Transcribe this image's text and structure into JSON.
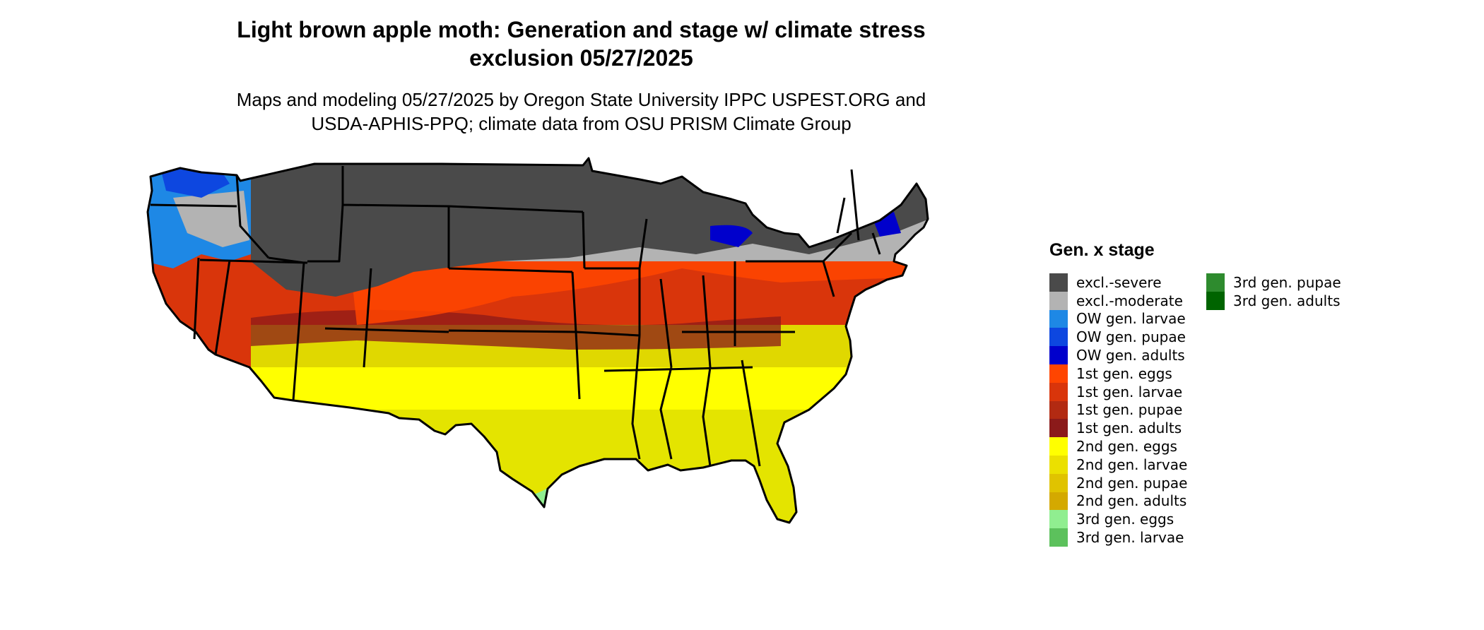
{
  "title_line1": "Light brown apple moth: Generation and stage w/ climate stress",
  "title_line2": "exclusion 05/27/2025",
  "subtitle_line1": "Maps and modeling 05/27/2025 by Oregon State University IPPC USPEST.ORG and",
  "subtitle_line2": "USDA-APHIS-PPQ; climate data from OSU PRISM Climate Group",
  "legend": {
    "title": "Gen. x stage",
    "items": [
      {
        "label": "excl.-severe",
        "color": "#4a4a4a"
      },
      {
        "label": "excl.-moderate",
        "color": "#b3b3b3"
      },
      {
        "label": "OW gen. larvae",
        "color": "#1e88e5"
      },
      {
        "label": "OW gen. pupae",
        "color": "#0d47e0"
      },
      {
        "label": "OW gen. adults",
        "color": "#0000cc"
      },
      {
        "label": "1st gen. eggs",
        "color": "#ff4500"
      },
      {
        "label": "1st gen. larvae",
        "color": "#d9350b"
      },
      {
        "label": "1st gen. pupae",
        "color": "#b22a12"
      },
      {
        "label": "1st gen. adults",
        "color": "#8b1a1a"
      },
      {
        "label": "2nd gen. eggs",
        "color": "#ffff00"
      },
      {
        "label": "2nd gen. larvae",
        "color": "#ebe000"
      },
      {
        "label": "2nd gen. pupae",
        "color": "#e0c300"
      },
      {
        "label": "2nd gen. adults",
        "color": "#d4a900"
      },
      {
        "label": "3rd gen. eggs",
        "color": "#90ee90"
      },
      {
        "label": "3rd gen. larvae",
        "color": "#5cc15c"
      },
      {
        "label": "3rd gen. pupae",
        "color": "#2e8b2e"
      },
      {
        "label": "3rd gen. adults",
        "color": "#006400"
      }
    ]
  }
}
